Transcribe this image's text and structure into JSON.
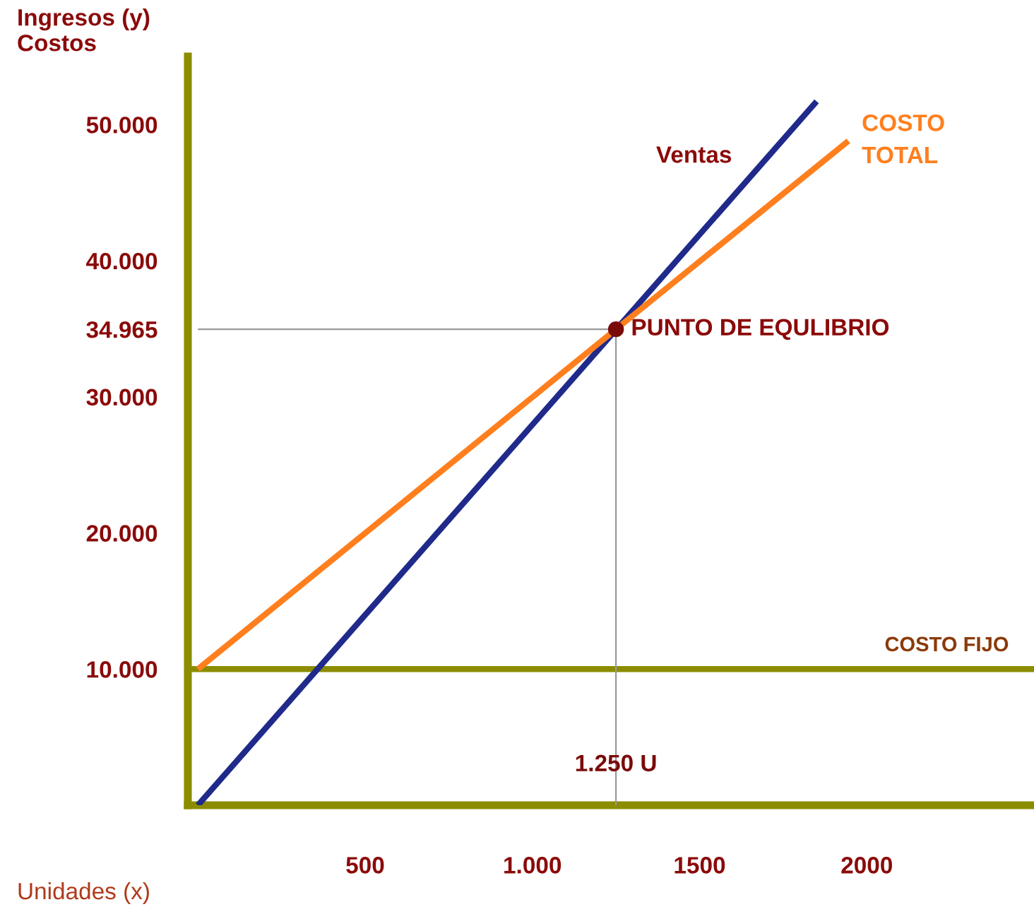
{
  "chart_data": {
    "type": "line",
    "xlabel": "Unidades (x)",
    "ylabel": "Ingresos (y)\nCostos",
    "xlim": [
      -30,
      2500
    ],
    "ylim": [
      0,
      55000
    ],
    "xticks": [
      500,
      {
        "value": 1000,
        "label": "1.000"
      },
      1500,
      2000
    ],
    "yticks": [
      {
        "value": 10000,
        "label": "10.000"
      },
      {
        "value": 20000,
        "label": "20.000"
      },
      {
        "value": 30000,
        "label": "30.000"
      },
      {
        "value": 34965,
        "label": "34.965"
      },
      {
        "value": 40000,
        "label": "40.000"
      },
      {
        "value": 50000,
        "label": "50.000"
      }
    ],
    "series": [
      {
        "color": "#999999",
        "x": [
          0,
          1250,
          1250
        ],
        "values": [
          34965,
          34965,
          0
        ]
      },
      {
        "name": "Ventas",
        "color": "#1f2a8a",
        "x": [
          0,
          1850
        ],
        "values": [
          0,
          51700
        ]
      },
      {
        "name": "COSTO TOTAL",
        "color": "#ff7f1e",
        "x": [
          0,
          1250,
          1945
        ],
        "values": [
          10000,
          34965,
          48800
        ]
      },
      {
        "type": "scatter",
        "color": "#7a0a0a",
        "x": [
          1250
        ],
        "values": [
          34965
        ],
        "marker": "circle"
      }
    ],
    "ref_lines": [
      {
        "axis": "y",
        "value": 10000,
        "label": "COSTO FIJO",
        "color": "#8c8c00"
      }
    ],
    "annotations": [
      {
        "text": "PUNTO DE EQULIBRIO",
        "x": 1250,
        "y": 34965
      },
      {
        "text": "1.250 U",
        "x": 1250,
        "y": 2500
      }
    ],
    "grid": false
  }
}
